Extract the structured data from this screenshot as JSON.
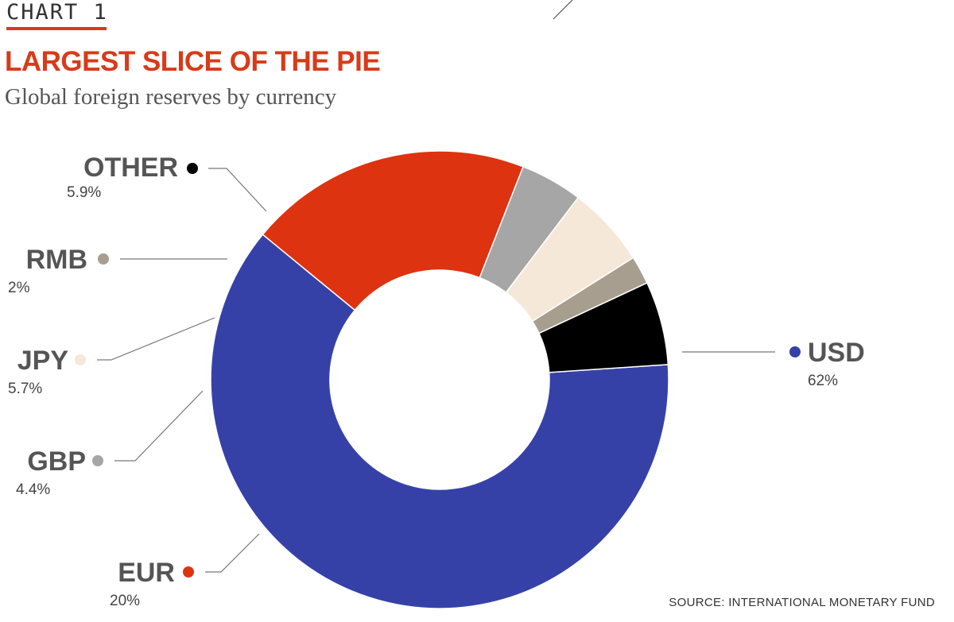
{
  "header": {
    "kicker": "CHART 1",
    "title": "LARGEST SLICE OF THE PIE",
    "subtitle": "Global foreign reserves by currency"
  },
  "footer": {
    "source": "SOURCE: INTERNATIONAL MONETARY FUND"
  },
  "chart_data": {
    "type": "pie",
    "style": "donut",
    "title": "LARGEST SLICE OF THE PIE",
    "subtitle": "Global foreign reserves by currency",
    "legend": "none",
    "slices": [
      {
        "label": "USD",
        "value": 62,
        "value_label": "62%",
        "color": "#3641a8"
      },
      {
        "label": "EUR",
        "value": 20,
        "value_label": "20%",
        "color": "#dd3311"
      },
      {
        "label": "GBP",
        "value": 4.4,
        "value_label": "4.4%",
        "color": "#a6a6a6"
      },
      {
        "label": "JPY",
        "value": 5.7,
        "value_label": "5.7%",
        "color": "#f5e8d8"
      },
      {
        "label": "RMB",
        "value": 2,
        "value_label": "2%",
        "color": "#a89e90"
      },
      {
        "label": "OTHER",
        "value": 5.9,
        "value_label": "5.9%",
        "color": "#000000"
      }
    ]
  }
}
